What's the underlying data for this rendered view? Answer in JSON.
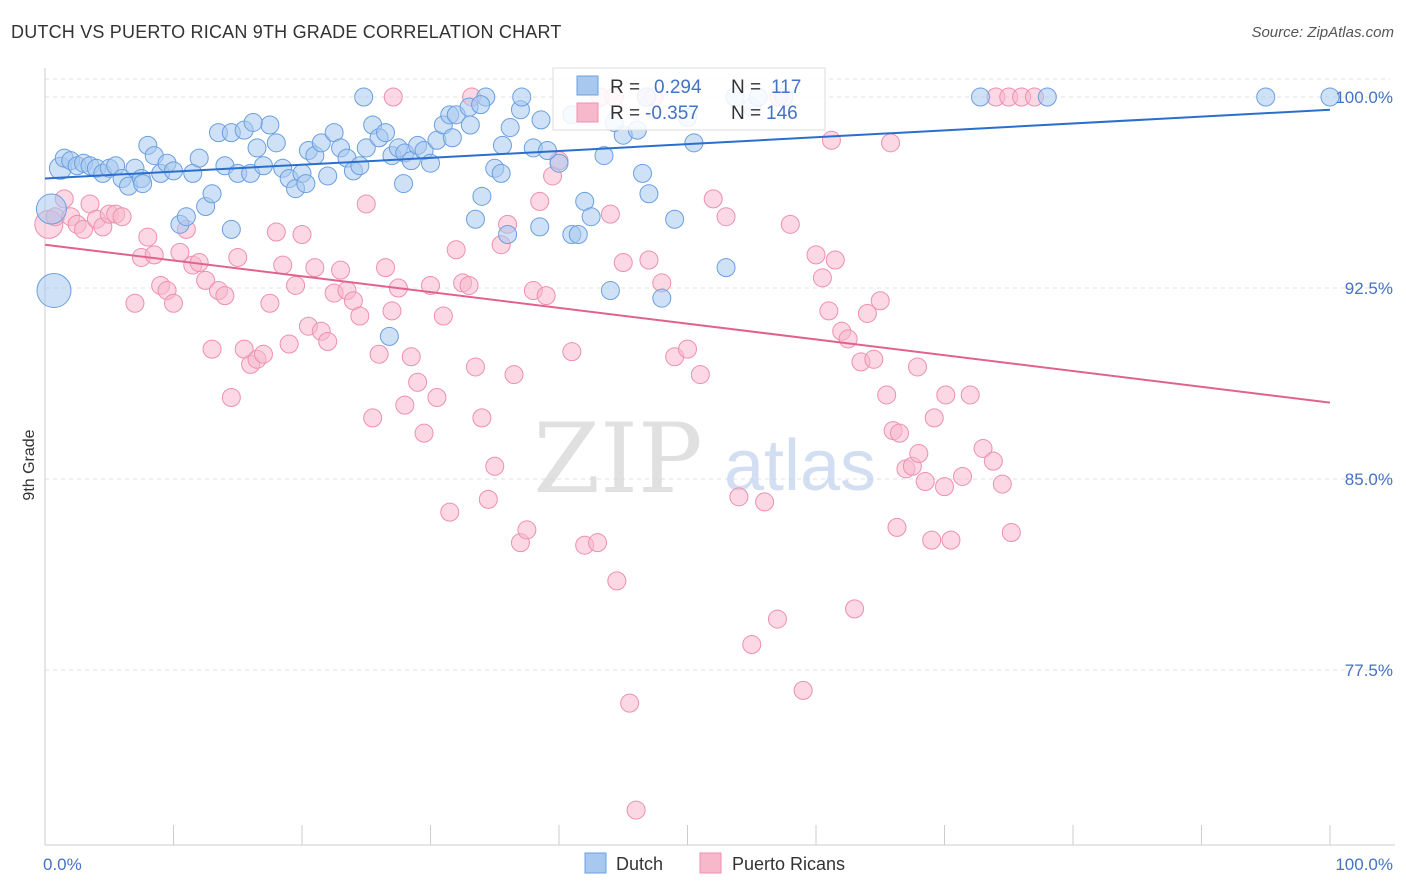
{
  "header": {
    "title": "DUTCH VS PUERTO RICAN 9TH GRADE CORRELATION CHART",
    "source": "Source: ZipAtlas.com"
  },
  "watermark": {
    "zip": "ZIP",
    "atlas": "atlas"
  },
  "colors": {
    "dutch_fill": "#a8c8f0",
    "dutch_stroke": "#6a9fe0",
    "dutch_line": "#2a6fce",
    "pr_fill": "#f7b8cc",
    "pr_stroke": "#ef8fb0",
    "pr_line": "#e2628f",
    "tick_text": "#4472c4",
    "grid": "#e0e0e0"
  },
  "chart_data": {
    "type": "scatter",
    "title": "DUTCH VS PUERTO RICAN 9TH GRADE CORRELATION CHART",
    "xlabel": "",
    "ylabel": "9th Grade",
    "xlim": [
      0,
      100
    ],
    "ylim": [
      70,
      100.7
    ],
    "x_tick_labels": [
      "0.0%",
      "100.0%"
    ],
    "y_ticks": [
      {
        "value": 100,
        "label": "100.0%"
      },
      {
        "value": 92.5,
        "label": "92.5%"
      },
      {
        "value": 85,
        "label": "85.0%"
      },
      {
        "value": 77.5,
        "label": "77.5%"
      }
    ],
    "grid": "horizontal dashed",
    "legend_position": "bottom-center",
    "stats": [
      {
        "r_label": "R =",
        "r_value": "0.294",
        "n_label": "N =",
        "n_value": "117"
      },
      {
        "r_label": "R =",
        "r_value": "-0.357",
        "n_label": "N =",
        "n_value": "146"
      }
    ],
    "series": [
      {
        "name": "Dutch",
        "trend": {
          "x": [
            0,
            100
          ],
          "y": [
            96.8,
            99.5
          ]
        },
        "points": [
          [
            1.2,
            97.2
          ],
          [
            1.5,
            97.6
          ],
          [
            2,
            97.5
          ],
          [
            2.5,
            97.3
          ],
          [
            3,
            97.4
          ],
          [
            3.5,
            97.3
          ],
          [
            4,
            97.2
          ],
          [
            4.5,
            97.0
          ],
          [
            5,
            97.2
          ],
          [
            5.5,
            97.3
          ],
          [
            6,
            96.8
          ],
          [
            6.5,
            96.5
          ],
          [
            7,
            97.2
          ],
          [
            7.5,
            96.8
          ],
          [
            8,
            98.1
          ],
          [
            8.5,
            97.7
          ],
          [
            9,
            97.0
          ],
          [
            9.5,
            97.4
          ],
          [
            10,
            97.1
          ],
          [
            10.5,
            95.0
          ],
          [
            11,
            95.3
          ],
          [
            11.5,
            97.0
          ],
          [
            12,
            97.6
          ],
          [
            12.5,
            95.7
          ],
          [
            13,
            96.2
          ],
          [
            13.5,
            98.6
          ],
          [
            14,
            97.3
          ],
          [
            14.5,
            98.6
          ],
          [
            15,
            97.0
          ],
          [
            15.5,
            98.7
          ],
          [
            16,
            97.0
          ],
          [
            16.5,
            98.0
          ],
          [
            17,
            97.3
          ],
          [
            17.5,
            98.9
          ],
          [
            18,
            98.2
          ],
          [
            18.5,
            97.2
          ],
          [
            19,
            96.8
          ],
          [
            19.5,
            96.4
          ],
          [
            20,
            97.0
          ],
          [
            20.5,
            97.9
          ],
          [
            21,
            97.7
          ],
          [
            21.5,
            98.2
          ],
          [
            22,
            96.9
          ],
          [
            22.5,
            98.6
          ],
          [
            23,
            98.0
          ],
          [
            23.5,
            97.6
          ],
          [
            24,
            97.1
          ],
          [
            24.5,
            97.3
          ],
          [
            25,
            98.0
          ],
          [
            25.5,
            98.9
          ],
          [
            26,
            98.4
          ],
          [
            26.5,
            98.6
          ],
          [
            27,
            97.7
          ],
          [
            27.5,
            98.0
          ],
          [
            28,
            97.8
          ],
          [
            28.5,
            97.5
          ],
          [
            29,
            98.1
          ],
          [
            29.5,
            97.9
          ],
          [
            30,
            97.4
          ],
          [
            30.5,
            98.3
          ],
          [
            31,
            98.9
          ],
          [
            31.5,
            99.3
          ],
          [
            32,
            99.3
          ],
          [
            33,
            99.6
          ],
          [
            33.5,
            95.2
          ],
          [
            34,
            96.1
          ],
          [
            35,
            97.2
          ],
          [
            35.5,
            97.0
          ],
          [
            36,
            94.6
          ],
          [
            37,
            99.5
          ],
          [
            38,
            98.0
          ],
          [
            38.5,
            94.9
          ],
          [
            40,
            97.4
          ],
          [
            41,
            94.6
          ],
          [
            41.5,
            94.6
          ],
          [
            42,
            95.9
          ],
          [
            42.5,
            95.3
          ],
          [
            44,
            92.4
          ],
          [
            45,
            98.5
          ],
          [
            46.5,
            97.0
          ],
          [
            47,
            96.2
          ],
          [
            48,
            92.1
          ],
          [
            49,
            95.2
          ],
          [
            50,
            99.2
          ],
          [
            50.5,
            98.2
          ],
          [
            53,
            93.3
          ],
          [
            55,
            99.6
          ],
          [
            24.8,
            100
          ],
          [
            34.3,
            100
          ],
          [
            37.1,
            100
          ],
          [
            46.8,
            100
          ],
          [
            53.7,
            100
          ],
          [
            55.5,
            100
          ],
          [
            57.5,
            100
          ],
          [
            72.8,
            100
          ],
          [
            78,
            100
          ],
          [
            95,
            100
          ],
          [
            100,
            100
          ],
          [
            0.5,
            95.6
          ],
          [
            0.7,
            92.4
          ],
          [
            7.6,
            96.6
          ],
          [
            14.5,
            94.8
          ],
          [
            16.2,
            99.0
          ],
          [
            26.8,
            90.6
          ],
          [
            31.7,
            98.4
          ],
          [
            33.1,
            98.9
          ],
          [
            36.2,
            98.8
          ],
          [
            38.6,
            99.1
          ],
          [
            41.0,
            99.3
          ],
          [
            43.5,
            97.7
          ],
          [
            44.3,
            99.0
          ],
          [
            46.1,
            98.7
          ],
          [
            39.1,
            97.9
          ],
          [
            20.3,
            96.6
          ],
          [
            27.9,
            96.6
          ],
          [
            33.9,
            99.7
          ],
          [
            35.6,
            98.1
          ]
        ],
        "sizes": {
          "0.5": 30,
          "0.7": 34,
          "1.2": 22
        }
      },
      {
        "name": "Puerto Ricans",
        "trend": {
          "x": [
            0,
            100
          ],
          "y": [
            94.2,
            88.0
          ]
        },
        "points": [
          [
            0.3,
            95.0
          ],
          [
            0.8,
            95.3
          ],
          [
            1.5,
            96.0
          ],
          [
            2,
            95.3
          ],
          [
            2.5,
            95.0
          ],
          [
            3,
            94.8
          ],
          [
            3.5,
            95.8
          ],
          [
            4,
            95.2
          ],
          [
            4.5,
            94.9
          ],
          [
            5,
            95.4
          ],
          [
            5.5,
            95.4
          ],
          [
            6,
            95.3
          ],
          [
            7,
            91.9
          ],
          [
            7.5,
            93.7
          ],
          [
            8,
            94.5
          ],
          [
            8.5,
            93.8
          ],
          [
            9,
            92.6
          ],
          [
            9.5,
            92.4
          ],
          [
            10,
            91.9
          ],
          [
            10.5,
            93.9
          ],
          [
            11,
            94.8
          ],
          [
            11.5,
            93.4
          ],
          [
            12,
            93.5
          ],
          [
            12.5,
            92.8
          ],
          [
            13,
            90.1
          ],
          [
            13.5,
            92.4
          ],
          [
            14,
            92.2
          ],
          [
            14.5,
            88.2
          ],
          [
            15,
            93.7
          ],
          [
            15.5,
            90.1
          ],
          [
            16,
            89.5
          ],
          [
            16.5,
            89.7
          ],
          [
            17,
            89.9
          ],
          [
            17.5,
            91.9
          ],
          [
            18,
            94.7
          ],
          [
            18.5,
            93.4
          ],
          [
            19,
            90.3
          ],
          [
            19.5,
            92.6
          ],
          [
            20,
            94.6
          ],
          [
            20.5,
            91.0
          ],
          [
            21,
            93.3
          ],
          [
            21.5,
            90.8
          ],
          [
            22,
            90.4
          ],
          [
            22.5,
            92.3
          ],
          [
            23,
            93.2
          ],
          [
            23.5,
            92.4
          ],
          [
            24,
            92.0
          ],
          [
            24.5,
            91.4
          ],
          [
            25,
            95.8
          ],
          [
            25.5,
            87.4
          ],
          [
            26,
            89.9
          ],
          [
            26.5,
            93.3
          ],
          [
            27,
            91.6
          ],
          [
            27.5,
            92.5
          ],
          [
            28,
            87.9
          ],
          [
            28.5,
            89.8
          ],
          [
            29,
            88.8
          ],
          [
            29.5,
            86.8
          ],
          [
            30,
            92.6
          ],
          [
            30.5,
            88.2
          ],
          [
            31,
            91.4
          ],
          [
            31.5,
            83.7
          ],
          [
            32,
            94.0
          ],
          [
            32.5,
            92.7
          ],
          [
            33,
            92.6
          ],
          [
            33.5,
            89.4
          ],
          [
            34,
            87.4
          ],
          [
            34.5,
            84.2
          ],
          [
            35,
            85.5
          ],
          [
            35.5,
            94.2
          ],
          [
            36,
            95.0
          ],
          [
            36.5,
            89.1
          ],
          [
            37,
            82.5
          ],
          [
            37.5,
            83.0
          ],
          [
            38,
            92.4
          ],
          [
            38.5,
            95.9
          ],
          [
            39,
            92.2
          ],
          [
            39.5,
            96.9
          ],
          [
            40,
            97.5
          ],
          [
            41,
            90.0
          ],
          [
            42,
            82.4
          ],
          [
            43,
            82.5
          ],
          [
            44,
            95.4
          ],
          [
            44.5,
            81.0
          ],
          [
            45,
            93.5
          ],
          [
            45.5,
            76.2
          ],
          [
            46,
            72.0
          ],
          [
            47,
            93.6
          ],
          [
            48,
            92.7
          ],
          [
            49,
            89.8
          ],
          [
            50,
            90.1
          ],
          [
            51,
            89.1
          ],
          [
            52,
            96.0
          ],
          [
            53,
            95.3
          ],
          [
            54,
            84.3
          ],
          [
            55,
            78.5
          ],
          [
            56,
            84.1
          ],
          [
            57,
            79.5
          ],
          [
            58,
            95.0
          ],
          [
            59,
            76.7
          ],
          [
            60,
            93.8
          ],
          [
            60.5,
            92.9
          ],
          [
            61,
            91.6
          ],
          [
            61.5,
            93.6
          ],
          [
            62,
            90.8
          ],
          [
            62.5,
            90.5
          ],
          [
            63,
            79.9
          ],
          [
            63.5,
            89.6
          ],
          [
            64,
            91.5
          ],
          [
            64.5,
            89.7
          ],
          [
            65,
            92.0
          ],
          [
            65.5,
            88.3
          ],
          [
            66,
            86.9
          ],
          [
            66.5,
            86.8
          ],
          [
            67,
            85.4
          ],
          [
            67.5,
            85.5
          ],
          [
            68,
            86.0
          ],
          [
            68.5,
            84.9
          ],
          [
            69,
            82.6
          ],
          [
            70,
            84.7
          ],
          [
            70.5,
            82.6
          ],
          [
            72,
            88.3
          ],
          [
            73,
            86.2
          ],
          [
            74,
            100
          ],
          [
            75,
            100
          ],
          [
            76,
            100
          ],
          [
            77,
            100
          ],
          [
            27.1,
            100
          ],
          [
            33.2,
            100
          ],
          [
            43.2,
            100
          ],
          [
            44.3,
            100
          ],
          [
            46.8,
            100
          ],
          [
            47.4,
            100
          ],
          [
            57.1,
            100
          ],
          [
            61.2,
            98.3
          ],
          [
            65.8,
            98.2
          ],
          [
            67.9,
            89.4
          ],
          [
            69.2,
            87.4
          ],
          [
            70.1,
            88.3
          ],
          [
            66.3,
            83.1
          ],
          [
            71.4,
            85.1
          ],
          [
            73.8,
            85.7
          ],
          [
            74.5,
            84.8
          ],
          [
            75.2,
            82.9
          ]
        ],
        "sizes": {
          "0.3": 28
        }
      }
    ]
  },
  "legend": {
    "items": [
      {
        "label": "Dutch"
      },
      {
        "label": "Puerto Ricans"
      }
    ]
  }
}
